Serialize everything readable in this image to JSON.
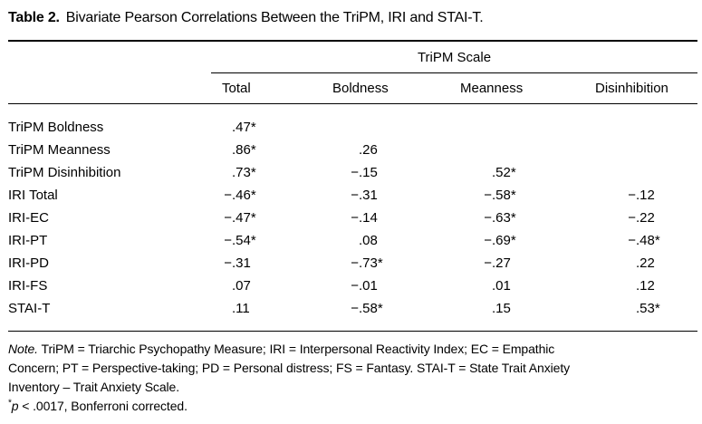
{
  "title": {
    "label": "Table 2.",
    "text": "Bivariate Pearson Correlations Between the TriPM, IRI and STAI-T."
  },
  "header": {
    "spanner": "TriPM Scale",
    "columns": [
      "Total",
      "Boldness",
      "Meanness",
      "Disinhibition"
    ]
  },
  "rows": [
    {
      "label": "TriPM Boldness",
      "values": [
        ".47*",
        "",
        "",
        ""
      ]
    },
    {
      "label": "TriPM Meanness",
      "values": [
        ".86*",
        ".26",
        "",
        ""
      ]
    },
    {
      "label": "TriPM Disinhibition",
      "values": [
        ".73*",
        "−.15",
        ".52*",
        ""
      ]
    },
    {
      "label": "IRI Total",
      "values": [
        "−.46*",
        "−.31",
        "−.58*",
        "−.12"
      ]
    },
    {
      "label": "IRI-EC",
      "values": [
        "−.47*",
        "−.14",
        "−.63*",
        "−.22"
      ]
    },
    {
      "label": "IRI-PT",
      "values": [
        "−.54*",
        ".08",
        "−.69*",
        "−.48*"
      ]
    },
    {
      "label": "IRI-PD",
      "values": [
        "−.31",
        "−.73*",
        "−.27",
        ".22"
      ]
    },
    {
      "label": "IRI-FS",
      "values": [
        ".07",
        "−.01",
        ".01",
        ".12"
      ]
    },
    {
      "label": "STAI-T",
      "values": [
        ".11",
        "−.58*",
        ".15",
        ".53*"
      ]
    }
  ],
  "note": {
    "label": "Note.",
    "lines": [
      "TriPM = Triarchic Psychopathy Measure; IRI = Interpersonal Reactivity Index; EC = Empathic",
      "Concern; PT = Perspective-taking; PD = Personal distress; FS = Fantasy. STAI-T = State Trait Anxiety",
      "Inventory – Trait Anxiety Scale."
    ],
    "sig_star": "*",
    "sig_p": "p",
    "sig_rest": " < .0017, Bonferroni corrected."
  },
  "colors": {
    "background": "#ffffff",
    "text": "#000000",
    "rule": "#000000"
  }
}
